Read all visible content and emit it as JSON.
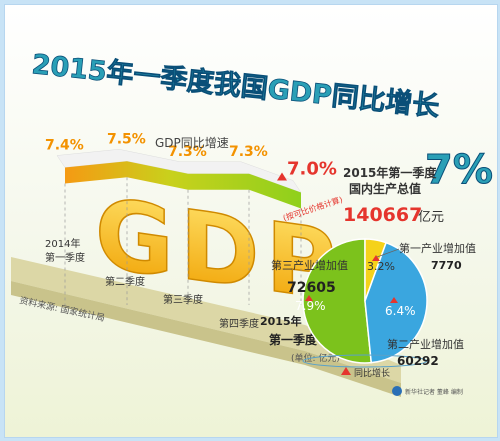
{
  "colors": {
    "title": "#2a9fb6",
    "title_outline": "#0a4f78",
    "band_top": "#f2f2f2",
    "band_orange": "#f59a13",
    "band_green": "#9bd11c",
    "value_orange": "#f39200",
    "gdp_letters": "#f7b500",
    "board": "#dcd7a6",
    "pie_tertiary": "#7cc21c",
    "pie_primary": "#f5d21a",
    "pie_secondary": "#3aa6df",
    "arrow_red": "#e5352d"
  },
  "header": {
    "title_main": "2015年一季度我国GDP同比增长",
    "title_pct": "7%"
  },
  "chart_data": [
    {
      "type": "line",
      "title": "GDP同比增速",
      "categories": [
        "2014年第一季度",
        "第二季度",
        "第三季度",
        "第四季度",
        "2015年第一季度"
      ],
      "values": [
        7.4,
        7.5,
        7.3,
        7.3,
        7.0
      ],
      "unit": "%",
      "data_labels": [
        "7.4%",
        "7.5%",
        "7.3%",
        "7.3%",
        "7.0%"
      ],
      "last_note": "(按可比价格计算)"
    },
    {
      "type": "pie",
      "title": "2015年第一季度",
      "subtitle": "国内生产总值",
      "total": "140667",
      "total_unit": "亿元",
      "unit_note": "(单位: 亿元)",
      "legend_growth": "同比增长",
      "slices": [
        {
          "label": "第三产业增加值",
          "value": 72605,
          "growth": "7.9%"
        },
        {
          "label": "第一产业增加值",
          "value": 7770,
          "growth": "3.2%"
        },
        {
          "label": "第二产业增加值",
          "value": 60292,
          "growth": "6.4%"
        }
      ]
    }
  ],
  "axis": {
    "year_2014": "2014年",
    "q1": "第一季度",
    "q2": "第二季度",
    "q3": "第三季度",
    "q4": "第四季度",
    "year_2015": "2015年",
    "q1_2015": "第一季度"
  },
  "gdp_letters": "GDP",
  "source": "资料来源: 国家统计局",
  "credit": "新华社记者 董峰 编制"
}
